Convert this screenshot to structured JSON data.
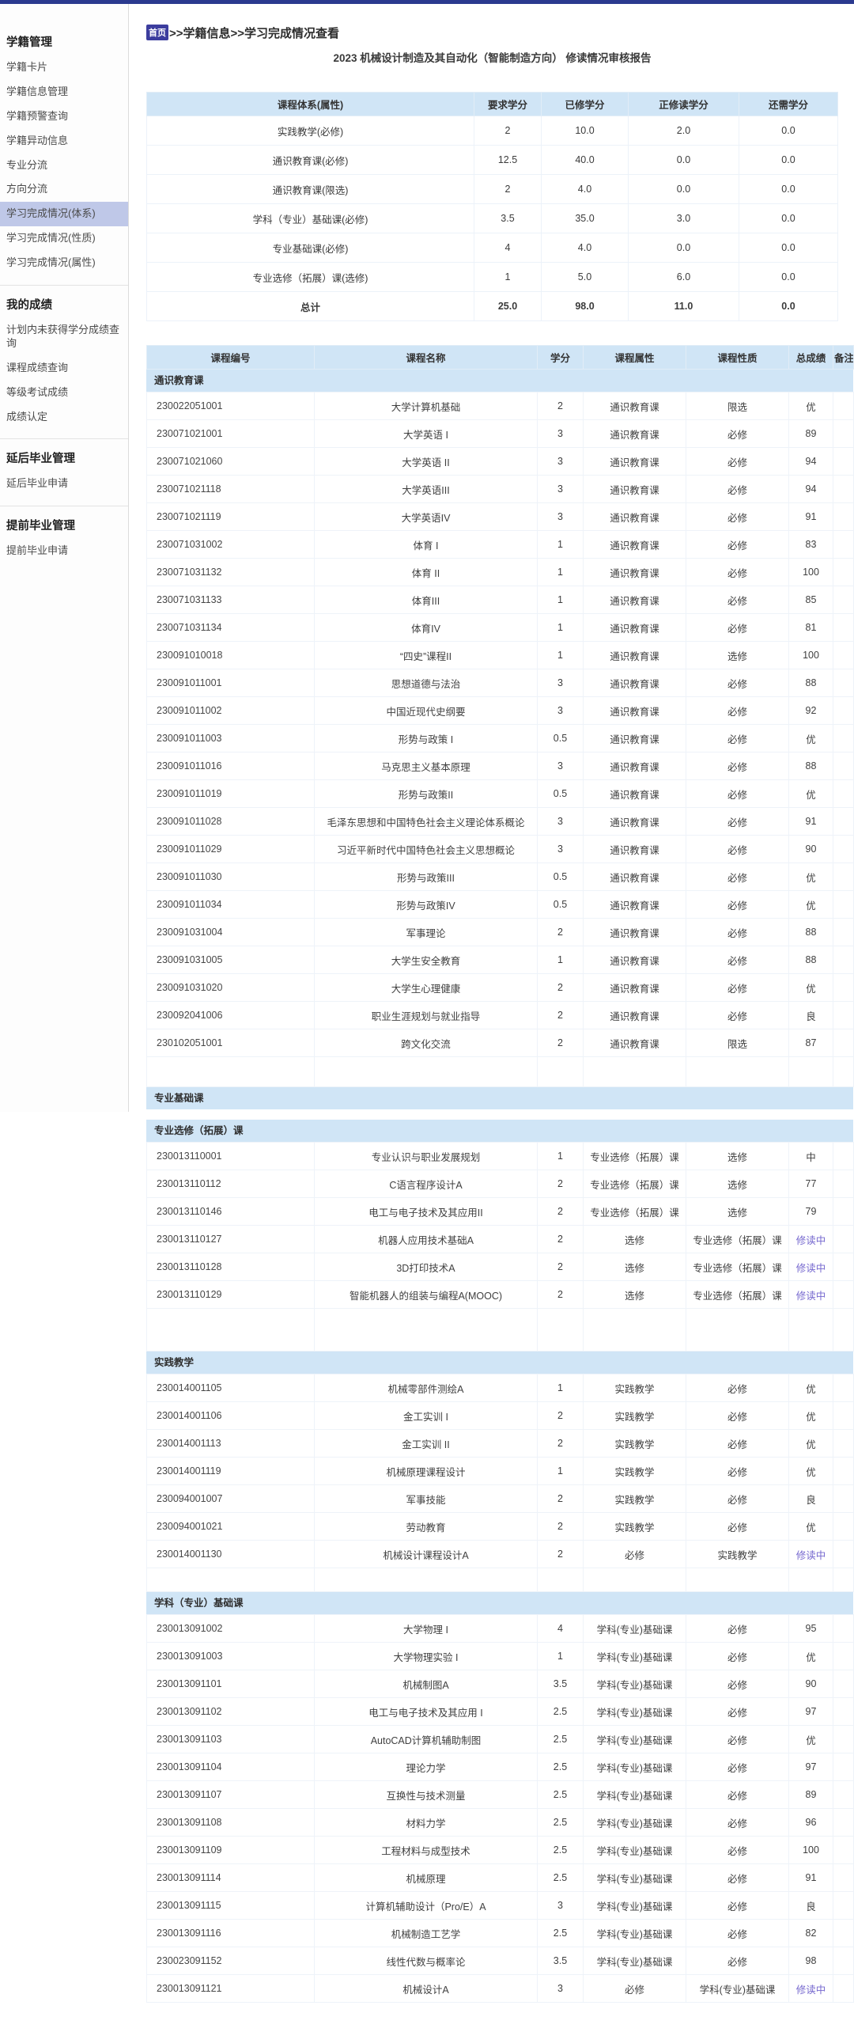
{
  "colors": {
    "topbar": "#2b3a8f",
    "table_header_bg": "#d0e5f6",
    "sidebar_selected_bg": "#bfc8e8",
    "home_badge_bg": "#3c3d9e",
    "inprogress_text": "#7668cf"
  },
  "sidebar": {
    "sections": [
      {
        "heading": "学籍管理",
        "selected_index": 6,
        "items": [
          "学籍卡片",
          "学籍信息管理",
          "学籍预警查询",
          "学籍异动信息",
          "专业分流",
          "方向分流",
          "学习完成情况(体系)",
          "学习完成情况(性质)",
          "学习完成情况(属性)"
        ]
      },
      {
        "heading": "我的成绩",
        "selected_index": -1,
        "items": [
          "计划内未获得学分成绩查询",
          "课程成绩查询",
          "等级考试成绩",
          "成绩认定"
        ]
      },
      {
        "heading": "延后毕业管理",
        "selected_index": -1,
        "items": [
          "延后毕业申请"
        ]
      },
      {
        "heading": "提前毕业管理",
        "selected_index": -1,
        "items": [
          "提前毕业申请"
        ]
      }
    ]
  },
  "breadcrumb": {
    "home": "首页",
    "rest": ">>学籍信息>>学习完成情况查看"
  },
  "report_title": "2023 机械设计制造及其自动化（智能制造方向） 修读情况审核报告",
  "summary_table": {
    "headers": [
      "课程体系(属性)",
      "要求学分",
      "已修学分",
      "正修读学分",
      "还需学分"
    ],
    "rows": [
      [
        "实践教学(必修)",
        "2",
        "10.0",
        "2.0",
        "0.0"
      ],
      [
        "通识教育课(必修)",
        "12.5",
        "40.0",
        "0.0",
        "0.0"
      ],
      [
        "通识教育课(限选)",
        "2",
        "4.0",
        "0.0",
        "0.0"
      ],
      [
        "学科（专业）基础课(必修)",
        "3.5",
        "35.0",
        "3.0",
        "0.0"
      ],
      [
        "专业基础课(必修)",
        "4",
        "4.0",
        "0.0",
        "0.0"
      ],
      [
        "专业选修（拓展）课(选修)",
        "1",
        "5.0",
        "6.0",
        "0.0"
      ]
    ],
    "total_row": [
      "总计",
      "25.0",
      "98.0",
      "11.0",
      "0.0"
    ]
  },
  "course_table": {
    "headers": [
      "课程编号",
      "课程名称",
      "学分",
      "课程属性",
      "课程性质",
      "总成绩",
      "备注"
    ],
    "in_progress_label": "修读中",
    "sections": [
      {
        "title": "通识教育课",
        "rows": [
          [
            "230022051001",
            "大学计算机基础",
            "2",
            "通识教育课",
            "限选",
            "优"
          ],
          [
            "230071021001",
            "大学英语 I",
            "3",
            "通识教育课",
            "必修",
            "89"
          ],
          [
            "230071021060",
            "大学英语 II",
            "3",
            "通识教育课",
            "必修",
            "94"
          ],
          [
            "230071021118",
            "大学英语III",
            "3",
            "通识教育课",
            "必修",
            "94"
          ],
          [
            "230071021119",
            "大学英语IV",
            "3",
            "通识教育课",
            "必修",
            "91"
          ],
          [
            "230071031002",
            "体育 I",
            "1",
            "通识教育课",
            "必修",
            "83"
          ],
          [
            "230071031132",
            "体育 II",
            "1",
            "通识教育课",
            "必修",
            "100"
          ],
          [
            "230071031133",
            "体育III",
            "1",
            "通识教育课",
            "必修",
            "85"
          ],
          [
            "230071031134",
            "体育IV",
            "1",
            "通识教育课",
            "必修",
            "81"
          ],
          [
            "230091010018",
            "“四史”课程II",
            "1",
            "通识教育课",
            "选修",
            "100"
          ],
          [
            "230091011001",
            "思想道德与法治",
            "3",
            "通识教育课",
            "必修",
            "88"
          ],
          [
            "230091011002",
            "中国近现代史纲要",
            "3",
            "通识教育课",
            "必修",
            "92"
          ],
          [
            "230091011003",
            "形势与政策 I",
            "0.5",
            "通识教育课",
            "必修",
            "优"
          ],
          [
            "230091011016",
            "马克思主义基本原理",
            "3",
            "通识教育课",
            "必修",
            "88"
          ],
          [
            "230091011019",
            "形势与政策II",
            "0.5",
            "通识教育课",
            "必修",
            "优"
          ],
          [
            "230091011028",
            "毛泽东思想和中国特色社会主义理论体系概论",
            "3",
            "通识教育课",
            "必修",
            "91"
          ],
          [
            "230091011029",
            "习近平新时代中国特色社会主义思想概论",
            "3",
            "通识教育课",
            "必修",
            "90"
          ],
          [
            "230091011030",
            "形势与政策III",
            "0.5",
            "通识教育课",
            "必修",
            "优"
          ],
          [
            "230091011034",
            "形势与政策IV",
            "0.5",
            "通识教育课",
            "必修",
            "优"
          ],
          [
            "230091031004",
            "军事理论",
            "2",
            "通识教育课",
            "必修",
            "88"
          ],
          [
            "230091031005",
            "大学生安全教育",
            "1",
            "通识教育课",
            "必修",
            "88"
          ],
          [
            "230091031020",
            "大学生心理健康",
            "2",
            "通识教育课",
            "必修",
            "优"
          ],
          [
            "230092041006",
            "职业生涯规划与就业指导",
            "2",
            "通识教育课",
            "必修",
            "良"
          ],
          [
            "230102051001",
            "跨文化交流",
            "2",
            "通识教育课",
            "限选",
            "87"
          ]
        ]
      },
      {
        "title": "专业基础课",
        "rows": []
      },
      {
        "title": "专业选修（拓展）课",
        "rows": [
          [
            "230013110001",
            "专业认识与职业发展规划",
            "1",
            "专业选修（拓展）课",
            "选修",
            "中"
          ],
          [
            "230013110112",
            "C语言程序设计A",
            "2",
            "专业选修（拓展）课",
            "选修",
            "77"
          ],
          [
            "230013110146",
            "电工与电子技术及其应用II",
            "2",
            "专业选修（拓展）课",
            "选修",
            "79"
          ],
          [
            "230013110127",
            "机器人应用技术基础A",
            "2",
            "选修",
            "专业选修（拓展）课",
            "修读中"
          ],
          [
            "230013110128",
            "3D打印技术A",
            "2",
            "选修",
            "专业选修（拓展）课",
            "修读中"
          ],
          [
            "230013110129",
            "智能机器人的组装与编程A(MOOC)",
            "2",
            "选修",
            "专业选修（拓展）课",
            "修读中"
          ]
        ]
      },
      {
        "title": "实践教学",
        "rows": [
          [
            "230014001105",
            "机械零部件测绘A",
            "1",
            "实践教学",
            "必修",
            "优"
          ],
          [
            "230014001106",
            "金工实训 I",
            "2",
            "实践教学",
            "必修",
            "优"
          ],
          [
            "230014001113",
            "金工实训 II",
            "2",
            "实践教学",
            "必修",
            "优"
          ],
          [
            "230014001119",
            "机械原理课程设计",
            "1",
            "实践教学",
            "必修",
            "优"
          ],
          [
            "230094001007",
            "军事技能",
            "2",
            "实践教学",
            "必修",
            "良"
          ],
          [
            "230094001021",
            "劳动教育",
            "2",
            "实践教学",
            "必修",
            "优"
          ],
          [
            "230014001130",
            "机械设计课程设计A",
            "2",
            "必修",
            "实践教学",
            "修读中"
          ]
        ]
      },
      {
        "title": "学科（专业）基础课",
        "rows": [
          [
            "230013091002",
            "大学物理 I",
            "4",
            "学科(专业)基础课",
            "必修",
            "95"
          ],
          [
            "230013091003",
            "大学物理实验 I",
            "1",
            "学科(专业)基础课",
            "必修",
            "优"
          ],
          [
            "230013091101",
            "机械制图A",
            "3.5",
            "学科(专业)基础课",
            "必修",
            "90"
          ],
          [
            "230013091102",
            "电工与电子技术及其应用 I",
            "2.5",
            "学科(专业)基础课",
            "必修",
            "97"
          ],
          [
            "230013091103",
            "AutoCAD计算机辅助制图",
            "2.5",
            "学科(专业)基础课",
            "必修",
            "优"
          ],
          [
            "230013091104",
            "理论力学",
            "2.5",
            "学科(专业)基础课",
            "必修",
            "97"
          ],
          [
            "230013091107",
            "互换性与技术测量",
            "2.5",
            "学科(专业)基础课",
            "必修",
            "89"
          ],
          [
            "230013091108",
            "材料力学",
            "2.5",
            "学科(专业)基础课",
            "必修",
            "96"
          ],
          [
            "230013091109",
            "工程材料与成型技术",
            "2.5",
            "学科(专业)基础课",
            "必修",
            "100"
          ],
          [
            "230013091114",
            "机械原理",
            "2.5",
            "学科(专业)基础课",
            "必修",
            "91"
          ],
          [
            "230013091115",
            "计算机辅助设计（Pro/E）A",
            "3",
            "学科(专业)基础课",
            "必修",
            "良"
          ],
          [
            "230013091116",
            "机械制造工艺学",
            "2.5",
            "学科(专业)基础课",
            "必修",
            "82"
          ],
          [
            "230023091152",
            "线性代数与概率论",
            "3.5",
            "学科(专业)基础课",
            "必修",
            "98"
          ],
          [
            "230013091121",
            "机械设计A",
            "3",
            "必修",
            "学科(专业)基础课",
            "修读中"
          ]
        ]
      }
    ]
  }
}
